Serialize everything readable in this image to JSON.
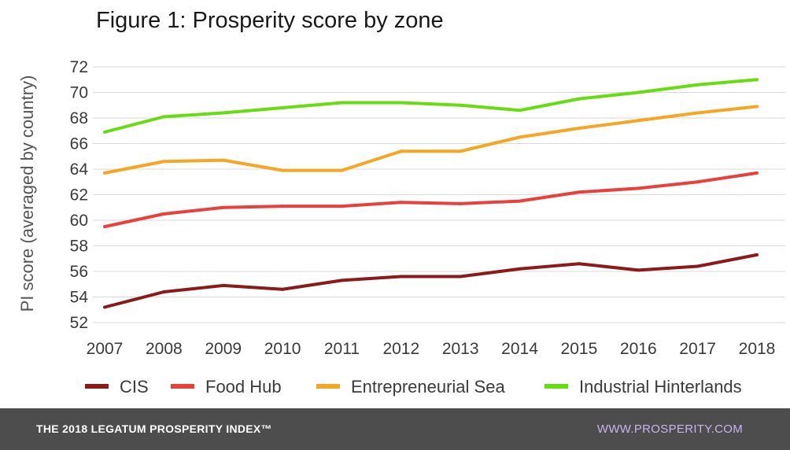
{
  "chart_data": {
    "type": "line",
    "title": "Figure 1: Prosperity score by zone",
    "xlabel": "",
    "ylabel": "PI score (averaged by country)",
    "categories": [
      "2007",
      "2008",
      "2009",
      "2010",
      "2011",
      "2012",
      "2013",
      "2014",
      "2015",
      "2016",
      "2017",
      "2018"
    ],
    "yticks": [
      "52",
      "54",
      "56",
      "58",
      "60",
      "62",
      "64",
      "66",
      "68",
      "70",
      "72"
    ],
    "ylim": [
      52,
      72
    ],
    "grid": true,
    "legend_position": "bottom",
    "series": [
      {
        "name": "CIS",
        "color": "#8b1a1a",
        "values": [
          53.2,
          54.4,
          54.9,
          54.6,
          55.3,
          55.6,
          55.6,
          56.2,
          56.6,
          56.1,
          56.4,
          57.3
        ]
      },
      {
        "name": "Food Hub",
        "color": "#e8413c",
        "values": [
          59.5,
          60.5,
          61.0,
          61.1,
          61.1,
          61.4,
          61.3,
          61.5,
          62.2,
          62.5,
          63.0,
          63.7
        ]
      },
      {
        "name": "Entrepreneurial Sea",
        "color": "#f5a623",
        "values": [
          63.7,
          64.6,
          64.7,
          63.9,
          63.9,
          65.4,
          65.4,
          66.5,
          67.2,
          67.8,
          68.4,
          68.9
        ]
      },
      {
        "name": "Industrial Hinterlands",
        "color": "#66dd11",
        "values": [
          66.9,
          68.1,
          68.4,
          68.8,
          69.2,
          69.2,
          69.0,
          68.6,
          69.5,
          70.0,
          70.6,
          71.0
        ]
      }
    ]
  },
  "footer": {
    "left": "THE 2018 LEGATUM PROSPERITY INDEX™",
    "right": "WWW.PROSPERITY.COM"
  }
}
